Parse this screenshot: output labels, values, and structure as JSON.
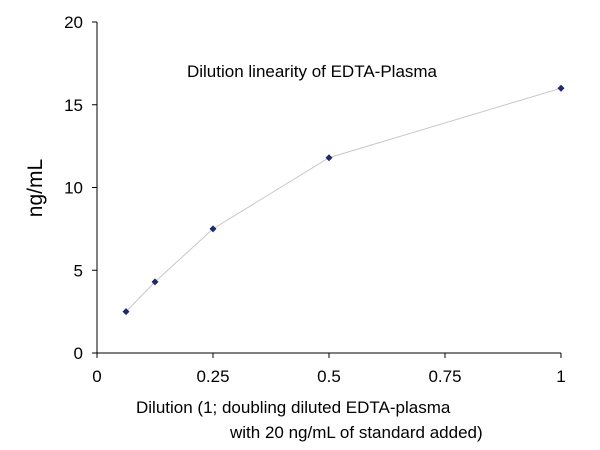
{
  "chart_data": {
    "type": "line",
    "title": "Dilution linearity of EDTA-Plasma",
    "xlabel": "Dilution (1; doubling diluted EDTA-plasma with 20 ng/mL of standard added)",
    "xlabel_lines": [
      "Dilution (1; doubling diluted EDTA-plasma",
      "with 20 ng/mL of standard added)"
    ],
    "ylabel": "ng/mL",
    "xlim": [
      0,
      1
    ],
    "ylim": [
      0,
      20
    ],
    "x_ticks": [
      0,
      0.25,
      0.5,
      0.75,
      1
    ],
    "x_tick_labels": [
      "0",
      "0.25",
      "0.5",
      "0.75",
      "1"
    ],
    "y_ticks": [
      0,
      5,
      10,
      15,
      20
    ],
    "y_tick_labels": [
      "0",
      "5",
      "10",
      "15",
      "20"
    ],
    "grid": false,
    "legend": "none",
    "series": [
      {
        "x": [
          0.0625,
          0.125,
          0.25,
          0.5,
          1
        ],
        "y": [
          2.5,
          4.3,
          7.5,
          11.8,
          16.0
        ],
        "line_color": "#c8c8c8",
        "marker_color": "#1f2a6b",
        "marker": "diamond"
      }
    ]
  }
}
